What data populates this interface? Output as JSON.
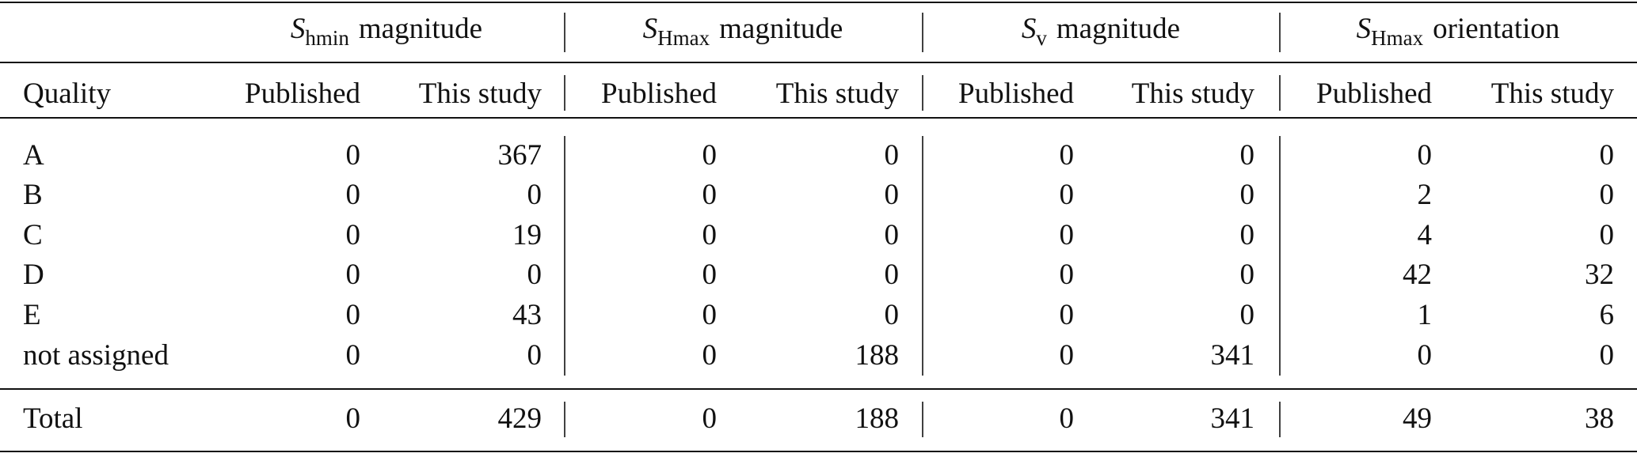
{
  "table": {
    "groups": [
      {
        "symbol": "S",
        "subscript": "hmin",
        "label": "magnitude"
      },
      {
        "symbol": "S",
        "subscript": "Hmax",
        "label": "magnitude"
      },
      {
        "symbol": "S",
        "subscript": "v",
        "label": "magnitude"
      },
      {
        "symbol": "S",
        "subscript": "Hmax",
        "label": "orientation"
      }
    ],
    "columns": [
      "Quality",
      "Published",
      "This study",
      "Published",
      "This study",
      "Published",
      "This study",
      "Published",
      "This study"
    ],
    "rows": [
      {
        "quality": "A",
        "values": [
          0,
          367,
          0,
          0,
          0,
          0,
          0,
          0
        ]
      },
      {
        "quality": "B",
        "values": [
          0,
          0,
          0,
          0,
          0,
          0,
          2,
          0
        ]
      },
      {
        "quality": "C",
        "values": [
          0,
          19,
          0,
          0,
          0,
          0,
          4,
          0
        ]
      },
      {
        "quality": "D",
        "values": [
          0,
          0,
          0,
          0,
          0,
          0,
          42,
          32
        ]
      },
      {
        "quality": "E",
        "values": [
          0,
          43,
          0,
          0,
          0,
          0,
          1,
          6
        ]
      },
      {
        "quality": "not assigned",
        "values": [
          0,
          0,
          0,
          188,
          0,
          341,
          0,
          0
        ]
      }
    ],
    "total": {
      "quality": "Total",
      "values": [
        0,
        429,
        0,
        188,
        0,
        341,
        49,
        38
      ]
    }
  }
}
